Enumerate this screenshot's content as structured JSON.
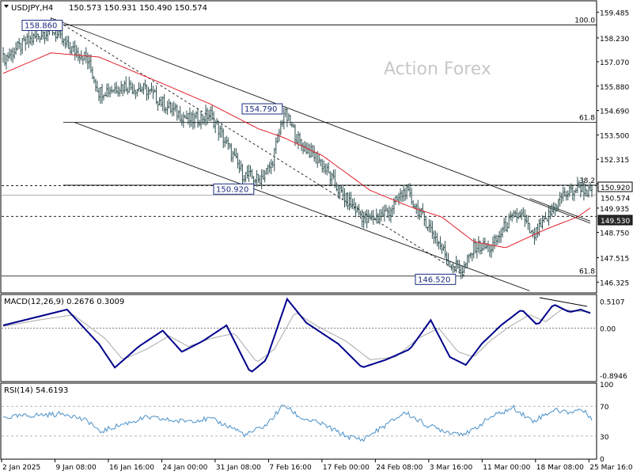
{
  "chart_data": [
    {
      "type": "candlestick",
      "panel": "price",
      "symbol_label": "USDJPY,H4",
      "ohlc_label": "150.573 150.931 150.490 150.574",
      "watermark": "Action Forex",
      "price_scale": {
        "range": [
          145.8,
          160.0
        ],
        "ticks": [
          "159.485",
          "158.230",
          "157.070",
          "155.880",
          "154.690",
          "153.500",
          "152.315",
          "151.125",
          "149.935",
          "148.750",
          "147.515",
          "146.325"
        ]
      },
      "x_ticks": [
        "2 Jan 2025",
        "9 Jan 08:00",
        "16 Jan 16:00",
        "24 Jan 00:00",
        "31 Jan 08:00",
        "7 Feb 16:00",
        "17 Feb 00:00",
        "24 Feb 08:00",
        "3 Mar 16:00",
        "11 Mar 00:00",
        "18 Mar 08:00",
        "25 Mar 16:00"
      ],
      "candle_count": 370,
      "price_path": [
        {
          "bar": 0,
          "price": 157.2
        },
        {
          "bar": 12,
          "price": 157.9
        },
        {
          "bar": 30,
          "price": 158.7
        },
        {
          "bar": 40,
          "price": 157.8
        },
        {
          "bar": 52,
          "price": 157.3
        },
        {
          "bar": 60,
          "price": 155.6
        },
        {
          "bar": 76,
          "price": 155.9
        },
        {
          "bar": 90,
          "price": 155.7
        },
        {
          "bar": 104,
          "price": 154.8
        },
        {
          "bar": 118,
          "price": 154.2
        },
        {
          "bar": 130,
          "price": 154.5
        },
        {
          "bar": 150,
          "price": 151.6
        },
        {
          "bar": 160,
          "price": 151.3
        },
        {
          "bar": 168,
          "price": 152.0
        },
        {
          "bar": 176,
          "price": 154.6
        },
        {
          "bar": 186,
          "price": 153.1
        },
        {
          "bar": 198,
          "price": 152.3
        },
        {
          "bar": 212,
          "price": 150.6
        },
        {
          "bar": 228,
          "price": 149.3
        },
        {
          "bar": 242,
          "price": 149.8
        },
        {
          "bar": 252,
          "price": 150.8
        },
        {
          "bar": 268,
          "price": 148.9
        },
        {
          "bar": 280,
          "price": 147.3
        },
        {
          "bar": 288,
          "price": 146.9
        },
        {
          "bar": 296,
          "price": 148.1
        },
        {
          "bar": 306,
          "price": 148.0
        },
        {
          "bar": 316,
          "price": 149.2
        },
        {
          "bar": 324,
          "price": 149.7
        },
        {
          "bar": 332,
          "price": 148.5
        },
        {
          "bar": 340,
          "price": 149.3
        },
        {
          "bar": 350,
          "price": 150.5
        },
        {
          "bar": 362,
          "price": 151.0
        },
        {
          "bar": 369,
          "price": 150.57
        }
      ],
      "moving_average_path": [
        {
          "bar": 0,
          "price": 156.5
        },
        {
          "bar": 30,
          "price": 157.5
        },
        {
          "bar": 60,
          "price": 157.3
        },
        {
          "bar": 100,
          "price": 156.0
        },
        {
          "bar": 130,
          "price": 155.0
        },
        {
          "bar": 160,
          "price": 153.8
        },
        {
          "bar": 175,
          "price": 153.4
        },
        {
          "bar": 200,
          "price": 152.5
        },
        {
          "bar": 230,
          "price": 150.8
        },
        {
          "bar": 255,
          "price": 150.0
        },
        {
          "bar": 275,
          "price": 149.5
        },
        {
          "bar": 295,
          "price": 148.3
        },
        {
          "bar": 315,
          "price": 148.0
        },
        {
          "bar": 340,
          "price": 148.9
        },
        {
          "bar": 360,
          "price": 149.5
        },
        {
          "bar": 369,
          "price": 150.0
        }
      ],
      "annotations": {
        "high_label": "158.860",
        "mid_high_label": "154.790",
        "pivot_label": "150.920",
        "low_label": "146.520",
        "fib_labels": [
          "100.0",
          "61.8",
          "38.2",
          "61.8"
        ]
      },
      "right_tags": [
        {
          "text": "150.920",
          "style": "boxed"
        },
        {
          "text": "150.574",
          "style": "price"
        },
        {
          "text": "149.530",
          "style": "dark"
        }
      ]
    },
    {
      "type": "line",
      "panel": "macd",
      "label": "MACD(12,26,9) 0.2676 0.3009",
      "ticks": [
        "0.5107",
        "0.00",
        "-0.8946"
      ],
      "range": [
        -1.0,
        0.62
      ],
      "series": [
        {
          "points": [
            {
              "bar": 0,
              "value": 0.05
            },
            {
              "bar": 20,
              "value": 0.2
            },
            {
              "bar": 40,
              "value": 0.35
            },
            {
              "bar": 60,
              "value": -0.3
            },
            {
              "bar": 70,
              "value": -0.75
            },
            {
              "bar": 85,
              "value": -0.35
            },
            {
              "bar": 100,
              "value": -0.05
            },
            {
              "bar": 112,
              "value": -0.45
            },
            {
              "bar": 125,
              "value": -0.25
            },
            {
              "bar": 140,
              "value": 0.05
            },
            {
              "bar": 155,
              "value": -0.85
            },
            {
              "bar": 165,
              "value": -0.6
            },
            {
              "bar": 178,
              "value": 0.55
            },
            {
              "bar": 190,
              "value": 0.1
            },
            {
              "bar": 210,
              "value": -0.3
            },
            {
              "bar": 225,
              "value": -0.75
            },
            {
              "bar": 240,
              "value": -0.6
            },
            {
              "bar": 255,
              "value": -0.4
            },
            {
              "bar": 268,
              "value": 0.15
            },
            {
              "bar": 280,
              "value": -0.55
            },
            {
              "bar": 290,
              "value": -0.7
            },
            {
              "bar": 300,
              "value": -0.3
            },
            {
              "bar": 312,
              "value": 0.05
            },
            {
              "bar": 325,
              "value": 0.35
            },
            {
              "bar": 335,
              "value": 0.05
            },
            {
              "bar": 345,
              "value": 0.45
            },
            {
              "bar": 355,
              "value": 0.3
            },
            {
              "bar": 362,
              "value": 0.35
            },
            {
              "bar": 369,
              "value": 0.27
            }
          ]
        },
        {
          "points": [
            {
              "bar": 0,
              "value": 0.03
            },
            {
              "bar": 22,
              "value": 0.15
            },
            {
              "bar": 44,
              "value": 0.25
            },
            {
              "bar": 64,
              "value": -0.2
            },
            {
              "bar": 75,
              "value": -0.6
            },
            {
              "bar": 90,
              "value": -0.4
            },
            {
              "bar": 104,
              "value": -0.15
            },
            {
              "bar": 116,
              "value": -0.35
            },
            {
              "bar": 130,
              "value": -0.2
            },
            {
              "bar": 145,
              "value": -0.1
            },
            {
              "bar": 159,
              "value": -0.65
            },
            {
              "bar": 170,
              "value": -0.4
            },
            {
              "bar": 183,
              "value": 0.3
            },
            {
              "bar": 196,
              "value": 0.05
            },
            {
              "bar": 215,
              "value": -0.25
            },
            {
              "bar": 230,
              "value": -0.6
            },
            {
              "bar": 246,
              "value": -0.55
            },
            {
              "bar": 260,
              "value": -0.2
            },
            {
              "bar": 273,
              "value": 0.0
            },
            {
              "bar": 285,
              "value": -0.45
            },
            {
              "bar": 295,
              "value": -0.55
            },
            {
              "bar": 305,
              "value": -0.25
            },
            {
              "bar": 317,
              "value": 0.02
            },
            {
              "bar": 330,
              "value": 0.25
            },
            {
              "bar": 340,
              "value": 0.12
            },
            {
              "bar": 350,
              "value": 0.35
            },
            {
              "bar": 360,
              "value": 0.32
            },
            {
              "bar": 369,
              "value": 0.3
            }
          ]
        }
      ]
    },
    {
      "type": "line",
      "panel": "rsi",
      "label": "RSI(14) 54.6193",
      "ticks": [
        "100",
        "70",
        "30",
        "0"
      ],
      "range": [
        0,
        100
      ],
      "levels": [
        70,
        30
      ],
      "points": [
        {
          "bar": 0,
          "value": 55
        },
        {
          "bar": 20,
          "value": 58
        },
        {
          "bar": 40,
          "value": 60
        },
        {
          "bar": 55,
          "value": 48
        },
        {
          "bar": 60,
          "value": 35
        },
        {
          "bar": 72,
          "value": 44
        },
        {
          "bar": 90,
          "value": 55
        },
        {
          "bar": 110,
          "value": 50
        },
        {
          "bar": 130,
          "value": 53
        },
        {
          "bar": 145,
          "value": 40
        },
        {
          "bar": 152,
          "value": 31
        },
        {
          "bar": 165,
          "value": 45
        },
        {
          "bar": 176,
          "value": 72
        },
        {
          "bar": 186,
          "value": 55
        },
        {
          "bar": 200,
          "value": 46
        },
        {
          "bar": 215,
          "value": 30
        },
        {
          "bar": 225,
          "value": 25
        },
        {
          "bar": 240,
          "value": 45
        },
        {
          "bar": 252,
          "value": 62
        },
        {
          "bar": 265,
          "value": 45
        },
        {
          "bar": 280,
          "value": 35
        },
        {
          "bar": 292,
          "value": 34
        },
        {
          "bar": 305,
          "value": 55
        },
        {
          "bar": 320,
          "value": 68
        },
        {
          "bar": 332,
          "value": 50
        },
        {
          "bar": 345,
          "value": 65
        },
        {
          "bar": 355,
          "value": 62
        },
        {
          "bar": 362,
          "value": 66
        },
        {
          "bar": 369,
          "value": 54.6
        }
      ]
    }
  ],
  "colors": {
    "candle": "#2f4f4f",
    "moving_average": "#e0202a",
    "macd": "#00008b",
    "signal": "#a9a9a9",
    "rsi": "#4a90c8",
    "grid": "#000000",
    "watermark": "#c8c8c8",
    "tag_dark": "#2b2b2b",
    "label_box": "#1a2a80"
  }
}
